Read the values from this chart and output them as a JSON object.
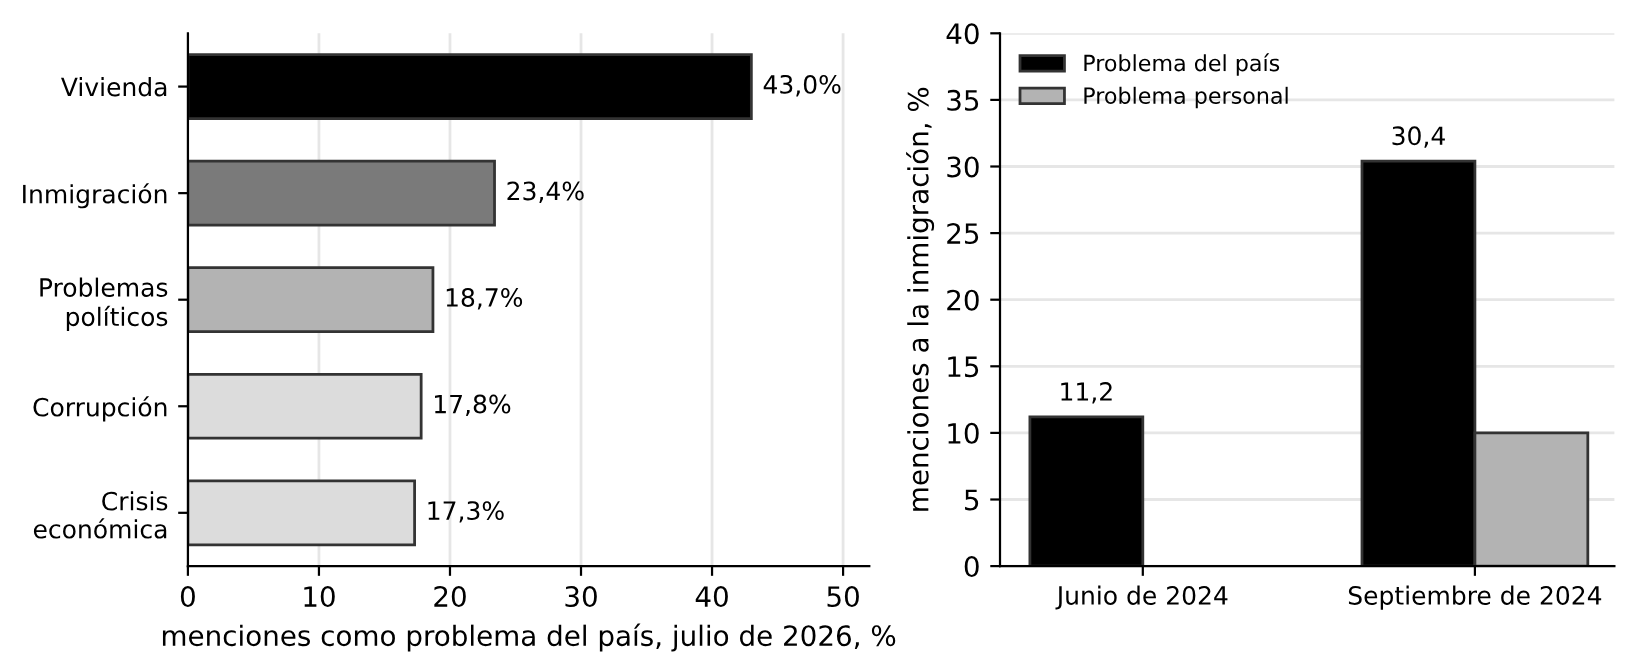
{
  "chart_data": [
    {
      "type": "bar",
      "orientation": "horizontal",
      "xlabel": "menciones como problema del país, julio de 2026, %",
      "categories": [
        "Vivienda",
        "Inmigración",
        "Problemas\npolíticos",
        "Corrupción",
        "Crisis\neconómica"
      ],
      "values": [
        43.0,
        23.4,
        18.7,
        17.8,
        17.3
      ],
      "colors": [
        "#000000",
        "#7a7a7a",
        "#b3b3b3",
        "#dcdcdc",
        "#dcdcdc"
      ],
      "value_labels": [
        "43,0%",
        "23,4%",
        "18,7%",
        "17,8%",
        "17,3%"
      ],
      "xlim": [
        0,
        52
      ],
      "xticks": [
        0,
        10,
        20,
        30,
        40,
        50
      ],
      "grid": "x",
      "legend": false
    },
    {
      "type": "bar",
      "ylabel": "menciones a la inmigración, %",
      "categories": [
        "Junio de 2024",
        "Septiembre de 2024"
      ],
      "series": [
        {
          "name": "Problema del país",
          "color": "#000000",
          "values": [
            11.2,
            30.4
          ],
          "value_labels": [
            "11,2",
            "30,4"
          ]
        },
        {
          "name": "Problema personal",
          "color": "#b3b3b3",
          "values": [
            null,
            10.0
          ]
        }
      ],
      "ylim": [
        0,
        40
      ],
      "yticks": [
        0,
        5,
        10,
        15,
        20,
        25,
        30,
        35,
        40
      ],
      "grid": "y",
      "legend": "top left"
    }
  ]
}
